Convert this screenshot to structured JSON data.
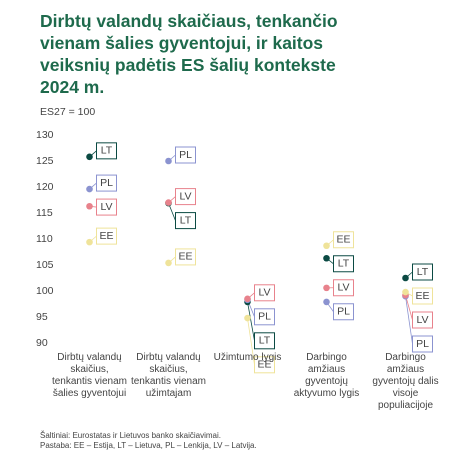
{
  "chart_data": {
    "type": "dot",
    "title": "Dirbtų valandų skaičiaus, tenkančio vienam šalies gyventojui, ir kaitos veiksnių padėtis ES šalių kontekste 2024 m.",
    "y_label": "ES27 = 100",
    "categories": [
      "Dirbtų valandų skaičius, tenkantis vienam šalies gyventojui",
      "Dirbtų valandų skaičius, tenkantis vienam užimtajam",
      "Užimtumo lygis",
      "Darbingo amžiaus gyventojų aktyvumo lygis",
      "Darbingo amžiaus gyventojų dalis visoje populiacijoje"
    ],
    "series": [
      {
        "name": "LT",
        "color": "#0b4a43",
        "values": [
          125.8,
          116.9,
          97.9,
          106.3,
          102.5
        ]
      },
      {
        "name": "PL",
        "color": "#8b93d0",
        "values": [
          119.6,
          125,
          98.3,
          97.9,
          99
        ]
      },
      {
        "name": "LV",
        "color": "#e8828c",
        "values": [
          116.3,
          117,
          98.5,
          100.6,
          99.2
        ]
      },
      {
        "name": "EE",
        "color": "#efe39a",
        "values": [
          109.4,
          105.4,
          94.8,
          108.7,
          99.8
        ]
      }
    ],
    "ylim": [
      90,
      130
    ],
    "yticks": [
      90,
      95,
      100,
      105,
      110,
      115,
      120,
      125,
      130
    ],
    "grid": false,
    "notes": [
      "Šaltiniai: Eurostatas ir Lietuvos banko skaičiavimai.",
      "Pastaba: EE – Estija, LT – Lietuva, PL – Lenkija, LV – Latvija."
    ]
  }
}
